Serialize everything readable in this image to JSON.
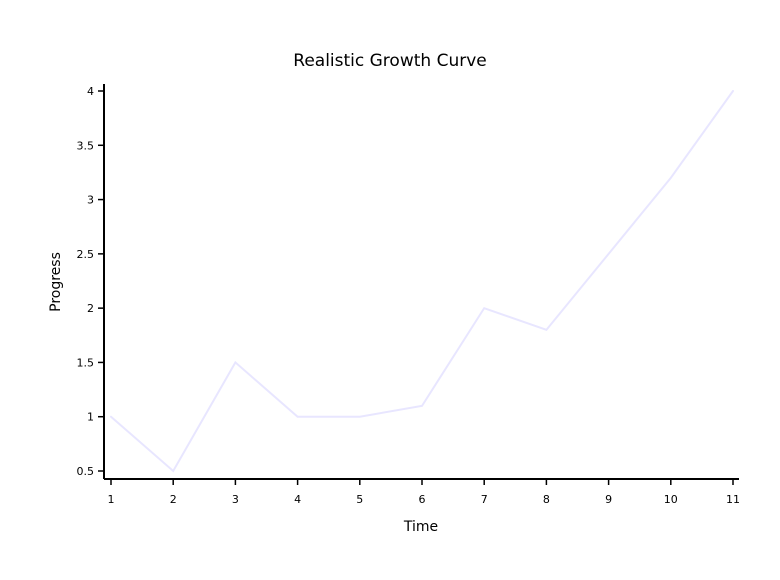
{
  "chart_data": {
    "type": "line",
    "title": "Realistic Growth Curve",
    "xlabel": "Time",
    "ylabel": "Progress",
    "x": [
      1,
      2,
      3,
      4,
      5,
      6,
      7,
      8,
      9,
      10,
      11
    ],
    "series": [
      {
        "values": [
          1.0,
          0.5,
          1.5,
          1.0,
          1.0,
          1.1,
          2.0,
          1.8,
          2.5,
          3.2,
          4.0
        ]
      }
    ],
    "xticks": [
      "1",
      "2",
      "3",
      "4",
      "5",
      "6",
      "7",
      "8",
      "9",
      "10",
      "11"
    ],
    "yticks": [
      "0.5",
      "1",
      "1.5",
      "2",
      "2.5",
      "3",
      "3.5",
      "4"
    ],
    "xlim": [
      1,
      11
    ],
    "ylim": [
      0.5,
      4
    ],
    "grid": false,
    "legend": "none",
    "colors": {
      "line": "#e8e6ff",
      "axis": "#000000",
      "background": "#ffffff"
    }
  }
}
